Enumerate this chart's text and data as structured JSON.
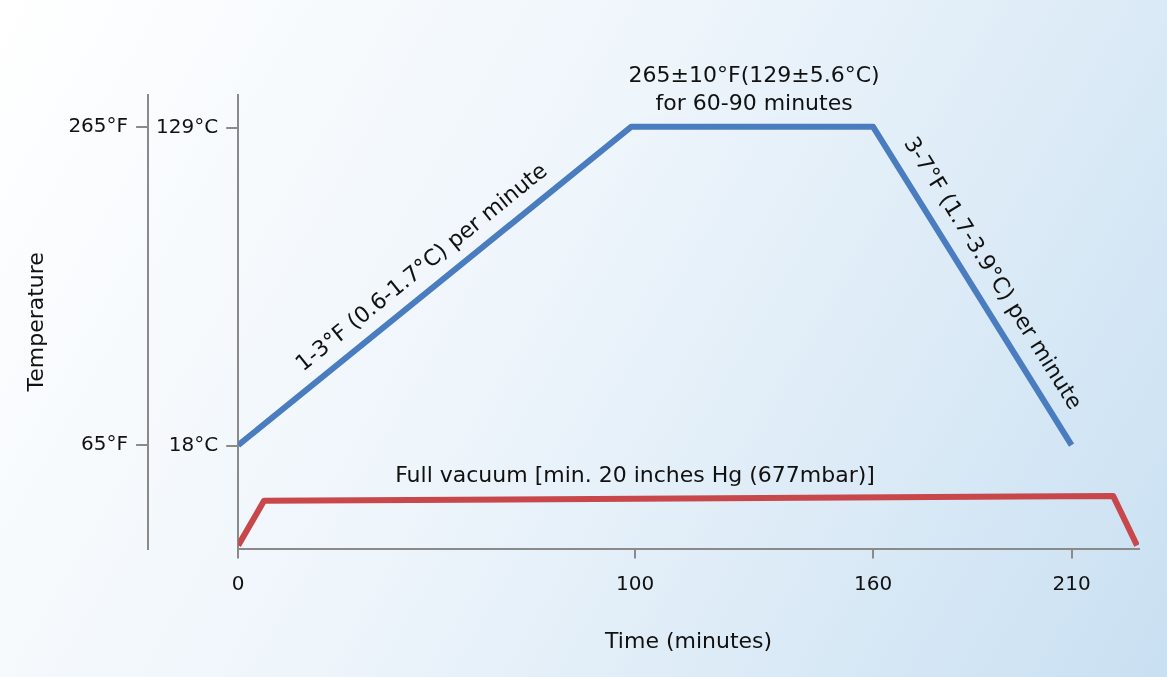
{
  "chart_data": {
    "type": "line",
    "xlabel": "Time (minutes)",
    "ylabel": "Temperature",
    "xlim": [
      0,
      227
    ],
    "xticks": [
      0,
      100,
      160,
      210
    ],
    "ylim": [
      0,
      285
    ],
    "yticks": [
      {
        "value": 65,
        "label": "65°F"
      },
      {
        "value": 265,
        "label": "265°F"
      }
    ],
    "y2lim": [
      -17.8,
      140.6
    ],
    "y2ticks": [
      {
        "value": 18,
        "label": "18°C"
      },
      {
        "value": 129,
        "label": "129°C"
      }
    ],
    "grid": false,
    "legend": false,
    "marker": "none",
    "line_style": "solid",
    "series": [
      {
        "color": "#4a7cc0",
        "x": [
          0,
          99,
          160,
          210
        ],
        "values": [
          65,
          265,
          265,
          65
        ]
      },
      {
        "color": "#c8474b",
        "x": [
          0,
          6.5,
          220.5,
          226.5
        ],
        "values": [
          2,
          30,
          33,
          2
        ]
      }
    ],
    "annotations": [
      {
        "text": "265±10°F(129±5.6°C)\nfor 60-90 minutes",
        "x": 130,
        "y": 265
      },
      {
        "text": "1-3°F (0.6-1.7°C) per minute",
        "x": 50,
        "y": 165
      },
      {
        "text": "3-7°F (1.7-3.9°C) per minute",
        "x": 185,
        "y": 165
      },
      {
        "text": "Full vacuum [min. 20 inches Hg (677mbar)]",
        "x": 100,
        "y": 31
      }
    ]
  }
}
